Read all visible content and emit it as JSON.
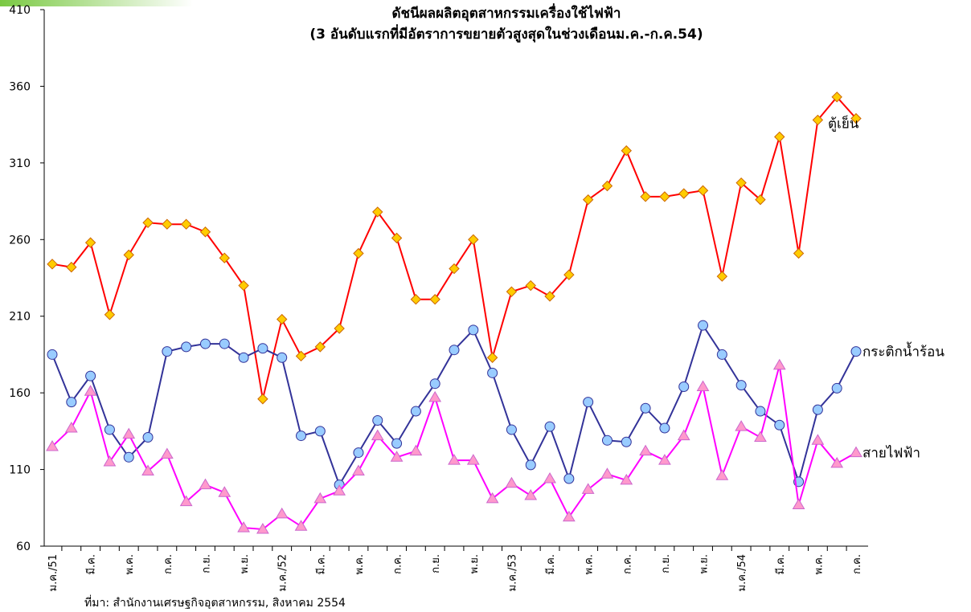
{
  "chart_data": {
    "type": "line",
    "title": "ดัชนีผลผลิตอุตสาหกรรมเครื่องใช้ไฟฟ้า",
    "subtitle": "(3 อันดับแรกที่มีอัตราการขยายตัวสูงสุดในช่วงเดือนม.ค.-ก.ค.54)",
    "source": "ที่มา: สำนักงานเศรษฐกิจอุตสาหกรรม, สิงหาคม 2554",
    "categories": [
      "ม.ค./51",
      null,
      "มี.ค.",
      null,
      "พ.ค.",
      null,
      "ก.ค.",
      null,
      "ก.ย.",
      null,
      "พ.ย.",
      null,
      "ม.ค./52",
      null,
      "มี.ค.",
      null,
      "พ.ค.",
      null,
      "ก.ค.",
      null,
      "ก.ย.",
      null,
      "พ.ย.",
      null,
      "ม.ค./53",
      null,
      "มี.ค.",
      null,
      "พ.ค.",
      null,
      "ก.ค.",
      null,
      "ก.ย.",
      null,
      "พ.ย.",
      null,
      "ม.ค./54",
      null,
      "มี.ค.",
      null,
      "พ.ค.",
      null,
      "ก.ค."
    ],
    "series": [
      {
        "name": "ตู้เย็น",
        "color": "#ff0000",
        "marker": "diamond",
        "marker_color": "#ffcc00",
        "values": [
          244,
          242,
          258,
          211,
          250,
          271,
          270,
          270,
          265,
          248,
          230,
          156,
          208,
          184,
          190,
          202,
          251,
          278,
          261,
          221,
          221,
          241,
          260,
          183,
          226,
          230,
          223,
          237,
          286,
          295,
          318,
          288,
          288,
          290,
          292,
          236,
          297,
          286,
          327,
          251,
          338,
          353,
          339
        ]
      },
      {
        "name": "กระติกน้ำร้อน",
        "color": "#333399",
        "marker": "circle",
        "marker_color": "#99ccff",
        "values": [
          185,
          154,
          171,
          136,
          118,
          131,
          187,
          190,
          192,
          192,
          183,
          189,
          183,
          132,
          135,
          100,
          121,
          142,
          127,
          148,
          166,
          188,
          201,
          173,
          136,
          113,
          138,
          104,
          154,
          129,
          128,
          150,
          137,
          164,
          204,
          185,
          165,
          148,
          139,
          102,
          149,
          163,
          187
        ]
      },
      {
        "name": "สายไฟฟ้า",
        "color": "#ff00ff",
        "marker": "triangle",
        "marker_color": "#ff99cc",
        "values": [
          125,
          137,
          161,
          115,
          133,
          109,
          120,
          89,
          100,
          95,
          72,
          71,
          81,
          73,
          91,
          96,
          109,
          132,
          118,
          122,
          157,
          116,
          116,
          91,
          101,
          93,
          104,
          79,
          97,
          107,
          103,
          122,
          116,
          132,
          164,
          106,
          138,
          131,
          178,
          87,
          129,
          114,
          121
        ]
      }
    ],
    "ylim": [
      60,
      410
    ],
    "yticks": [
      60,
      110,
      160,
      210,
      260,
      310,
      360,
      410
    ]
  }
}
